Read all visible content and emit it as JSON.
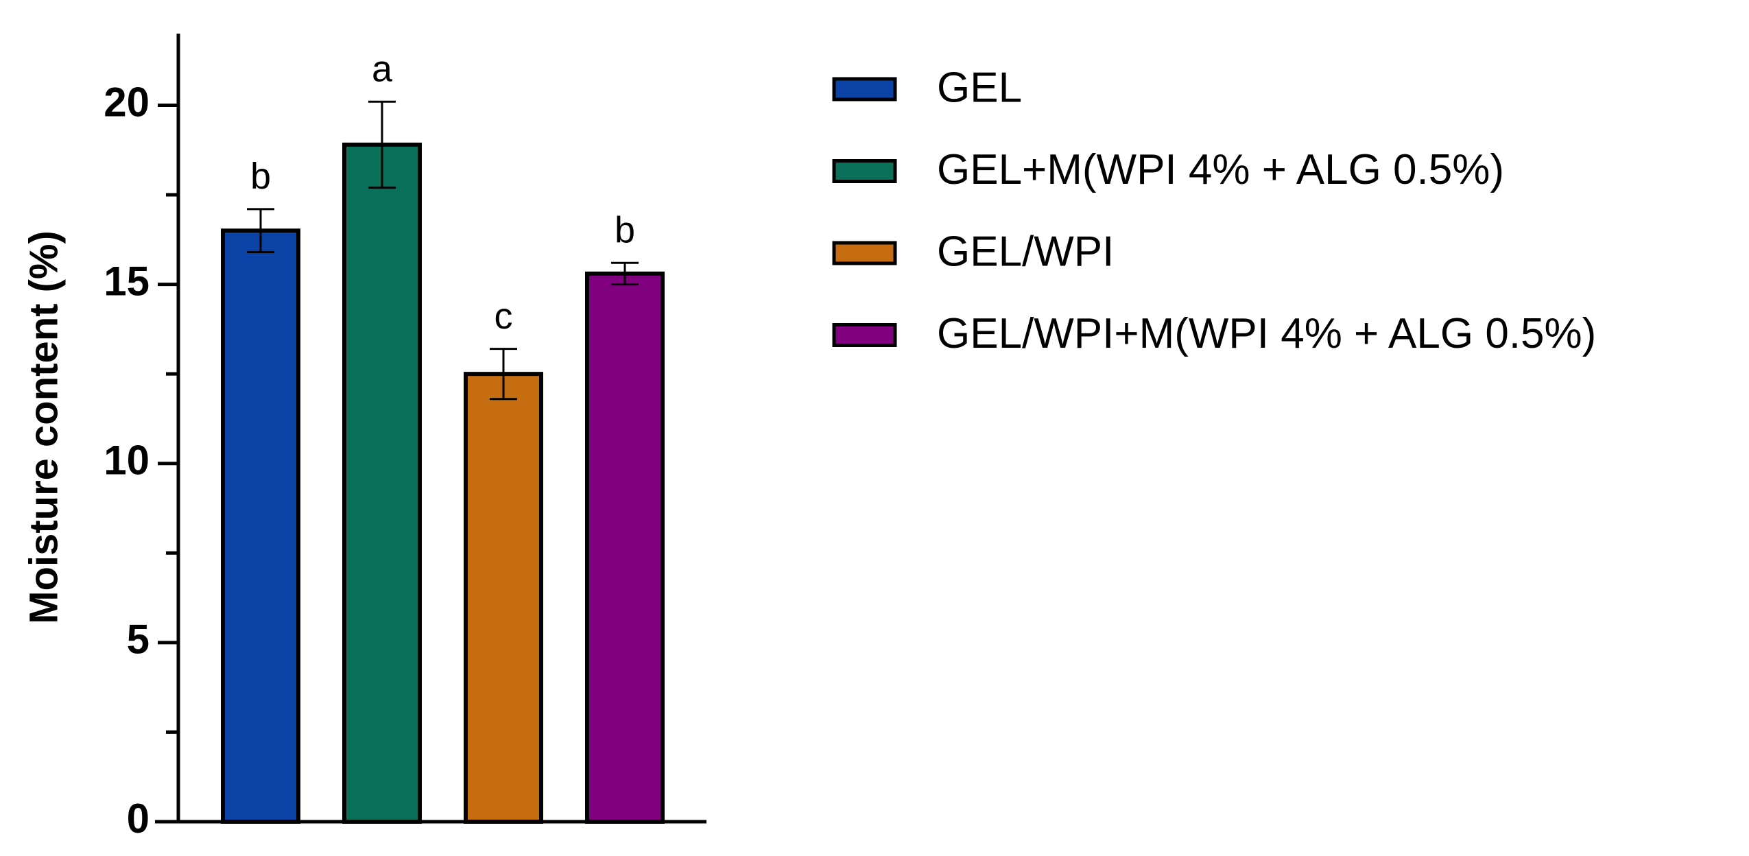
{
  "chart_data": {
    "type": "bar",
    "y_label": "Moisture content (%)",
    "series": [
      {
        "name": "GEL",
        "color": "#0b44a6",
        "values": [
          16.5
        ],
        "errors": [
          0.6
        ],
        "annotation": "b"
      },
      {
        "name": "GEL+M(WPI 4% + ALG 0.5%)",
        "color": "#0a705a",
        "values": [
          18.9
        ],
        "errors": [
          1.2
        ],
        "annotation": "a"
      },
      {
        "name": "GEL/WPI",
        "color": "#c56d10",
        "values": [
          12.5
        ],
        "errors": [
          0.7
        ],
        "annotation": "c"
      },
      {
        "name": "GEL/WPI+M(WPI 4% + ALG 0.5%)",
        "color": "#800080",
        "values": [
          15.3
        ],
        "errors": [
          0.3
        ],
        "annotation": "b"
      }
    ],
    "ylim": [
      0,
      22
    ],
    "yticks": [
      0,
      5,
      10,
      15,
      20
    ],
    "yminorticks": [
      2.5,
      7.5,
      12.5,
      17.5
    ],
    "legend": "right"
  }
}
